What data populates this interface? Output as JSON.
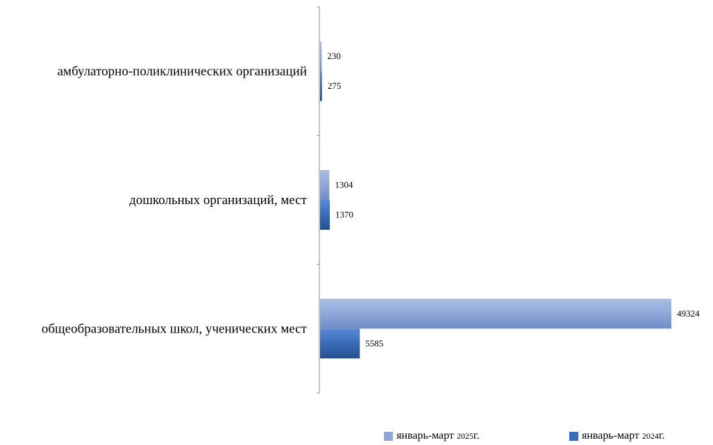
{
  "chart_data": {
    "type": "bar",
    "orientation": "horizontal",
    "categories": [
      "амбулаторно-поликлинических организаций",
      "дошкольных организаций, мест",
      "общеобразовательных школ, ученических мест"
    ],
    "series": [
      {
        "name": "январь-март 2025г.",
        "values": [
          230,
          1304,
          49324
        ],
        "color": "#8fa8d8"
      },
      {
        "name": "январь-март 2024г.",
        "values": [
          275,
          1370,
          5585
        ],
        "color": "#3a6bb8"
      }
    ],
    "xlim": [
      0,
      50000
    ],
    "grid": false,
    "legend_position": "bottom-right"
  },
  "legend": {
    "items": [
      {
        "prefix": "январь-март ",
        "year": "2025",
        "suffix": "г."
      },
      {
        "prefix": "январь-март ",
        "year": "2024",
        "suffix": "г."
      }
    ]
  }
}
